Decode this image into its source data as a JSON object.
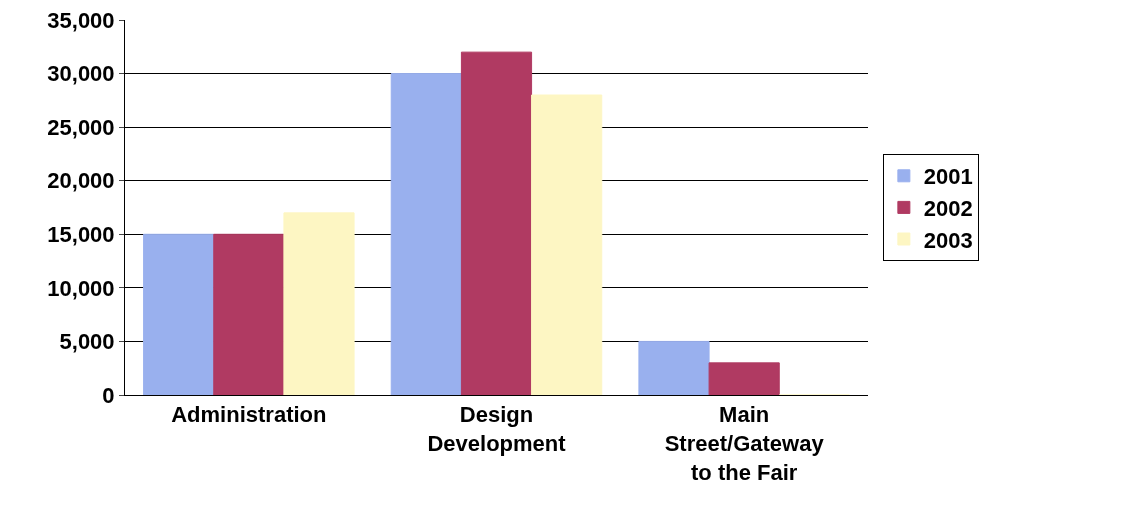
{
  "chart_data": {
    "type": "bar",
    "categories": [
      "Administration",
      "Design Development",
      "Main Street/Gateway to the Fair"
    ],
    "series": [
      {
        "name": "2001",
        "color": "#99b0ee",
        "values": [
          15000,
          30000,
          5000
        ]
      },
      {
        "name": "2002",
        "color": "#b03a62",
        "values": [
          15000,
          32000,
          3000
        ]
      },
      {
        "name": "2003",
        "color": "#fdf6c3",
        "values": [
          17000,
          28000,
          0
        ]
      }
    ],
    "ylim": [
      0,
      35000
    ],
    "yticks": [
      0,
      {
        "value": 5000,
        "label": "5,000"
      },
      {
        "value": 10000,
        "label": "10,000"
      },
      {
        "value": 15000,
        "label": "15,000"
      },
      {
        "value": 20000,
        "label": "20,000"
      },
      {
        "value": 25000,
        "label": "25,000"
      },
      {
        "value": 30000,
        "label": "30,000"
      },
      {
        "value": 35000,
        "label": "35,000"
      }
    ],
    "grid": "y",
    "legend": "right"
  }
}
